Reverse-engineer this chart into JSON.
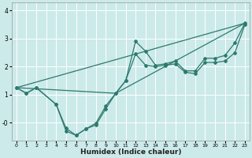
{
  "xlabel": "Humidex (Indice chaleur)",
  "bg_color": "#cceaea",
  "line_color": "#2d7a6e",
  "grid_color": "#ffffff",
  "xlim": [
    -0.5,
    23.5
  ],
  "ylim": [
    -0.65,
    4.3
  ],
  "xticks": [
    0,
    1,
    2,
    3,
    4,
    5,
    6,
    7,
    8,
    9,
    10,
    11,
    12,
    13,
    14,
    15,
    16,
    17,
    18,
    19,
    20,
    21,
    22,
    23
  ],
  "yticks": [
    0,
    1,
    2,
    3,
    4
  ],
  "ytick_labels": [
    "-0",
    "1",
    "2",
    "3",
    "4"
  ],
  "line1_x": [
    0,
    1,
    2,
    4,
    5,
    6,
    7,
    8,
    9,
    10,
    11,
    12,
    13,
    14,
    15,
    16,
    17,
    18,
    19,
    20,
    21,
    22,
    23
  ],
  "line1_y": [
    1.25,
    1.05,
    1.25,
    0.65,
    -0.3,
    -0.45,
    -0.22,
    -0.08,
    0.5,
    1.05,
    1.5,
    2.9,
    2.55,
    2.05,
    2.1,
    2.2,
    1.85,
    1.85,
    2.3,
    2.3,
    2.4,
    2.85,
    3.55
  ],
  "line2_x": [
    0,
    1,
    2,
    4,
    5,
    6,
    7,
    8,
    9,
    10,
    11,
    12,
    13,
    14,
    15,
    16,
    17,
    18,
    19,
    20,
    21,
    22,
    23
  ],
  "line2_y": [
    1.25,
    1.05,
    1.25,
    0.65,
    -0.2,
    -0.45,
    -0.22,
    -0.02,
    0.6,
    1.05,
    1.5,
    2.45,
    2.05,
    2.0,
    2.05,
    2.1,
    1.8,
    1.75,
    2.15,
    2.15,
    2.2,
    2.5,
    3.5
  ],
  "line3_x": [
    0,
    23
  ],
  "line3_y": [
    1.25,
    3.55
  ],
  "line4_x": [
    0,
    10,
    23
  ],
  "line4_y": [
    1.25,
    1.05,
    3.55
  ]
}
